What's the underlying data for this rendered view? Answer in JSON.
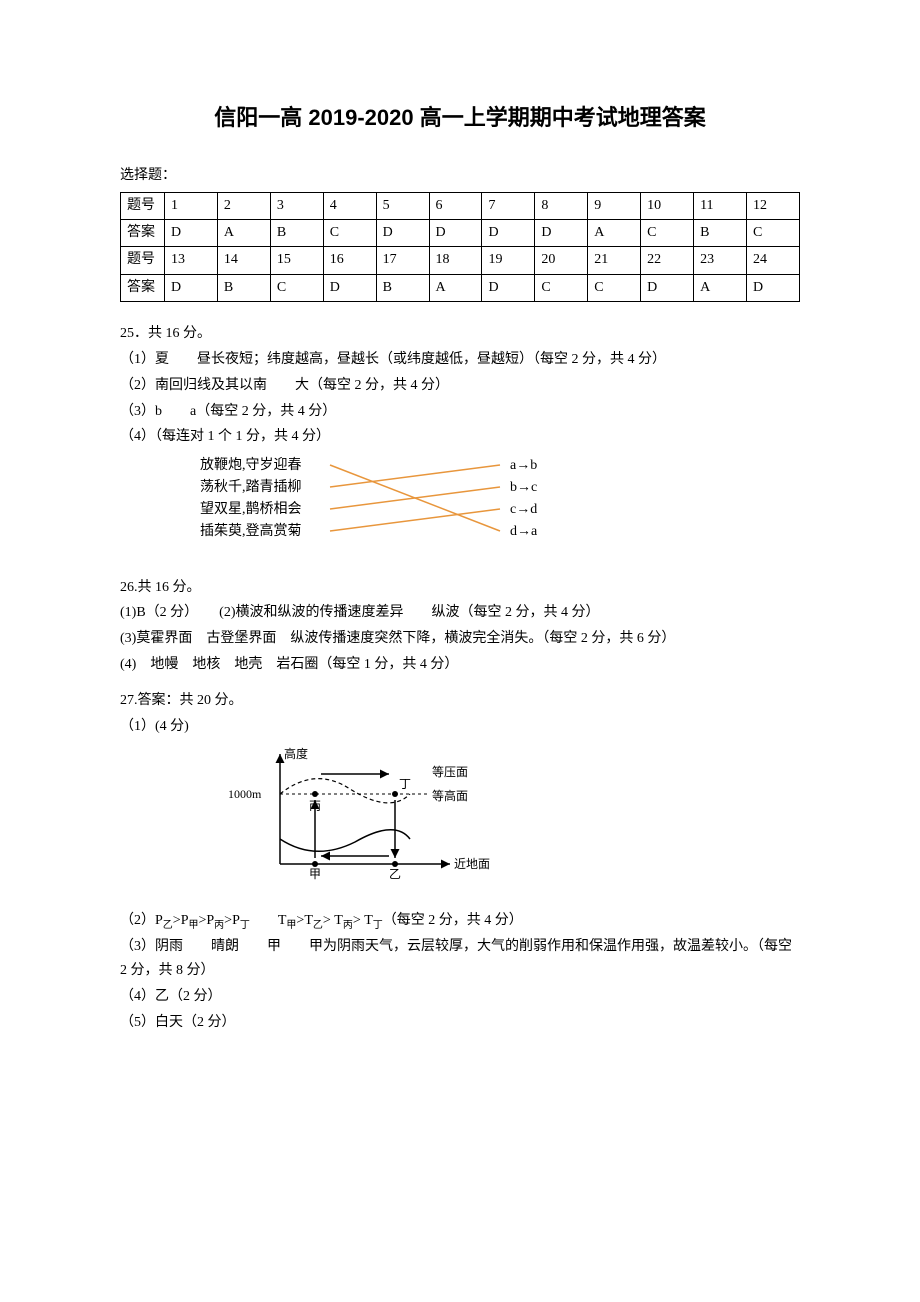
{
  "title": "信阳一高 2019-2020 高一上学期期中考试地理答案",
  "choice_label": "选择题：",
  "table": {
    "row_labels": [
      "题号",
      "答案",
      "题号",
      "答案"
    ],
    "r1": [
      "1",
      "2",
      "3",
      "4",
      "5",
      "6",
      "7",
      "8",
      "9",
      "10",
      "11",
      "12"
    ],
    "r2": [
      "D",
      "A",
      "B",
      "C",
      "D",
      "D",
      "D",
      "D",
      "A",
      "C",
      "B",
      "C"
    ],
    "r3": [
      "13",
      "14",
      "15",
      "16",
      "17",
      "18",
      "19",
      "20",
      "21",
      "22",
      "23",
      "24"
    ],
    "r4": [
      "D",
      "B",
      "C",
      "D",
      "B",
      "A",
      "D",
      "C",
      "C",
      "D",
      "A",
      "D"
    ]
  },
  "q25": {
    "header": "25．共 16 分。",
    "p1": "（1）夏　　昼长夜短；纬度越高，昼越长（或纬度越低，昼越短）（每空 2 分，共 4 分）",
    "p2": "（2）南回归线及其以南　　大（每空 2 分，共 4 分）",
    "p3": "（3）b　　a（每空 2 分，共 4 分）",
    "p4": "（4）（每连对 1 个 1 分，共 4 分）",
    "matching": {
      "left": [
        "放鞭炮,守岁迎春",
        "荡秋千,踏青插柳",
        "望双星,鹊桥相会",
        "插茱萸,登高赏菊"
      ],
      "right": [
        "a→b",
        "b→c",
        "c→d",
        "d→a"
      ],
      "line_color": "#e8963c",
      "connections": [
        [
          0,
          3
        ],
        [
          1,
          0
        ],
        [
          2,
          1
        ],
        [
          3,
          2
        ]
      ]
    }
  },
  "q26": {
    "header": "26.共 16 分。",
    "p1": "(1)B（2 分）　　(2)横波和纵波的传播速度差异　　纵波（每空 2 分，共 4 分）",
    "p2": "(3)莫霍界面　古登堡界面　纵波传播速度突然下降，横波完全消失。（每空 2 分，共 6 分）",
    "p3": "(4)　地幔　地核　地壳　岩石圈（每空 1 分，共 4 分）"
  },
  "q27": {
    "header": "27.答案：共 20 分。",
    "p1": "（1）(4 分)",
    "chart": {
      "y_axis_label": "高度",
      "y_tick": "1000m",
      "label_dengya": "等压面",
      "label_denggao": "等高面",
      "label_jindi": "近地面",
      "label_jia": "甲",
      "label_yi": "乙",
      "label_bing": "丙",
      "label_ding": "丁",
      "stroke": "#000000",
      "dash": "#000000"
    },
    "p2a": "（2）P",
    "p2_seq": [
      "乙",
      "甲",
      "丙",
      "丁"
    ],
    "p2b": "　　T",
    "p2_seq2": [
      "甲",
      "乙",
      "丙",
      "丁"
    ],
    "p2c": "（每空 2 分，共 4 分）",
    "p3": "（3）阴雨　　晴朗　　甲　　甲为阴雨天气，云层较厚，大气的削弱作用和保温作用强，故温差较小。（每空 2 分，共 8 分）",
    "p4": "（4）乙（2 分）",
    "p5": "（5）白天（2 分）"
  }
}
